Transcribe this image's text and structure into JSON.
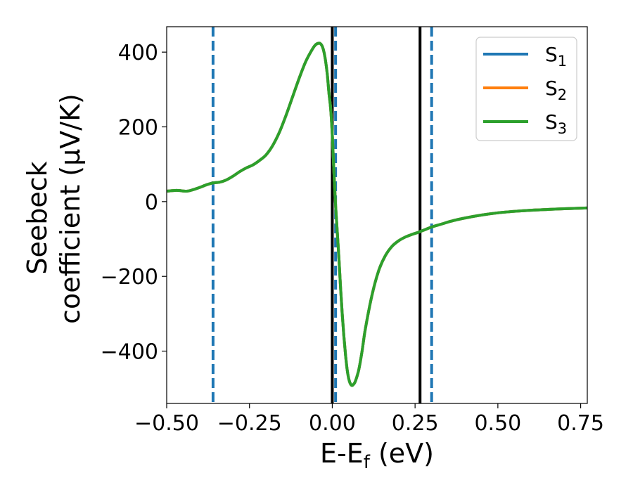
{
  "chart_data": {
    "type": "line",
    "xlabel": "E-E",
    "xlabel_sub": "f",
    "xlabel_unit": " (eV)",
    "ylabel_line1": "Seebeck",
    "ylabel_line2": "coefficient  (μV/K)",
    "xlim": [
      -0.5,
      0.77
    ],
    "ylim": [
      -540,
      468
    ],
    "xticks": [
      -0.5,
      -0.25,
      0.0,
      0.25,
      0.5,
      0.75
    ],
    "xtick_labels": [
      "−0.50",
      "−0.25",
      "0.00",
      "0.25",
      "0.50",
      "0.75"
    ],
    "yticks": [
      -400,
      -200,
      0,
      200,
      400
    ],
    "ytick_labels": [
      "−400",
      "−200",
      "0",
      "200",
      "400"
    ],
    "legend_position": "top-right",
    "series": [
      {
        "name": "S",
        "sub": "1",
        "color": "#1f77b4"
      },
      {
        "name": "S",
        "sub": "2",
        "color": "#ff7f0e"
      },
      {
        "name": "S",
        "sub": "3",
        "color": "#2ca02c"
      }
    ],
    "curve": {
      "x": [
        -0.5,
        -0.47,
        -0.44,
        -0.42,
        -0.4,
        -0.38,
        -0.36,
        -0.34,
        -0.32,
        -0.3,
        -0.28,
        -0.26,
        -0.24,
        -0.22,
        -0.2,
        -0.18,
        -0.16,
        -0.14,
        -0.12,
        -0.1,
        -0.08,
        -0.06,
        -0.05,
        -0.04,
        -0.035,
        -0.03,
        -0.025,
        -0.02,
        -0.015,
        -0.01,
        -0.005,
        0.0,
        0.003,
        0.006,
        0.01,
        0.015,
        0.02,
        0.025,
        0.03,
        0.035,
        0.04,
        0.045,
        0.05,
        0.055,
        0.06,
        0.065,
        0.07,
        0.08,
        0.09,
        0.1,
        0.12,
        0.14,
        0.16,
        0.18,
        0.2,
        0.22,
        0.24,
        0.26,
        0.28,
        0.3,
        0.33,
        0.36,
        0.4,
        0.45,
        0.5,
        0.55,
        0.6,
        0.65,
        0.7,
        0.77
      ],
      "y": [
        28,
        30,
        28,
        32,
        38,
        45,
        50,
        52,
        58,
        68,
        80,
        90,
        98,
        110,
        125,
        150,
        185,
        230,
        280,
        330,
        375,
        408,
        420,
        424,
        422,
        415,
        400,
        375,
        340,
        290,
        250,
        180,
        120,
        60,
        -10,
        -80,
        -150,
        -230,
        -300,
        -360,
        -410,
        -450,
        -475,
        -488,
        -492,
        -488,
        -480,
        -450,
        -400,
        -340,
        -250,
        -185,
        -145,
        -120,
        -105,
        -95,
        -88,
        -82,
        -75,
        -68,
        -60,
        -52,
        -44,
        -36,
        -30,
        -26,
        -23,
        -21,
        -19,
        -17
      ]
    },
    "vlines_black": [
      0.0,
      0.265
    ],
    "vlines_dashed": [
      -0.36,
      0.01,
      0.3
    ],
    "vline_black_color": "#000000",
    "vline_dashed_color": "#1f77b4"
  }
}
